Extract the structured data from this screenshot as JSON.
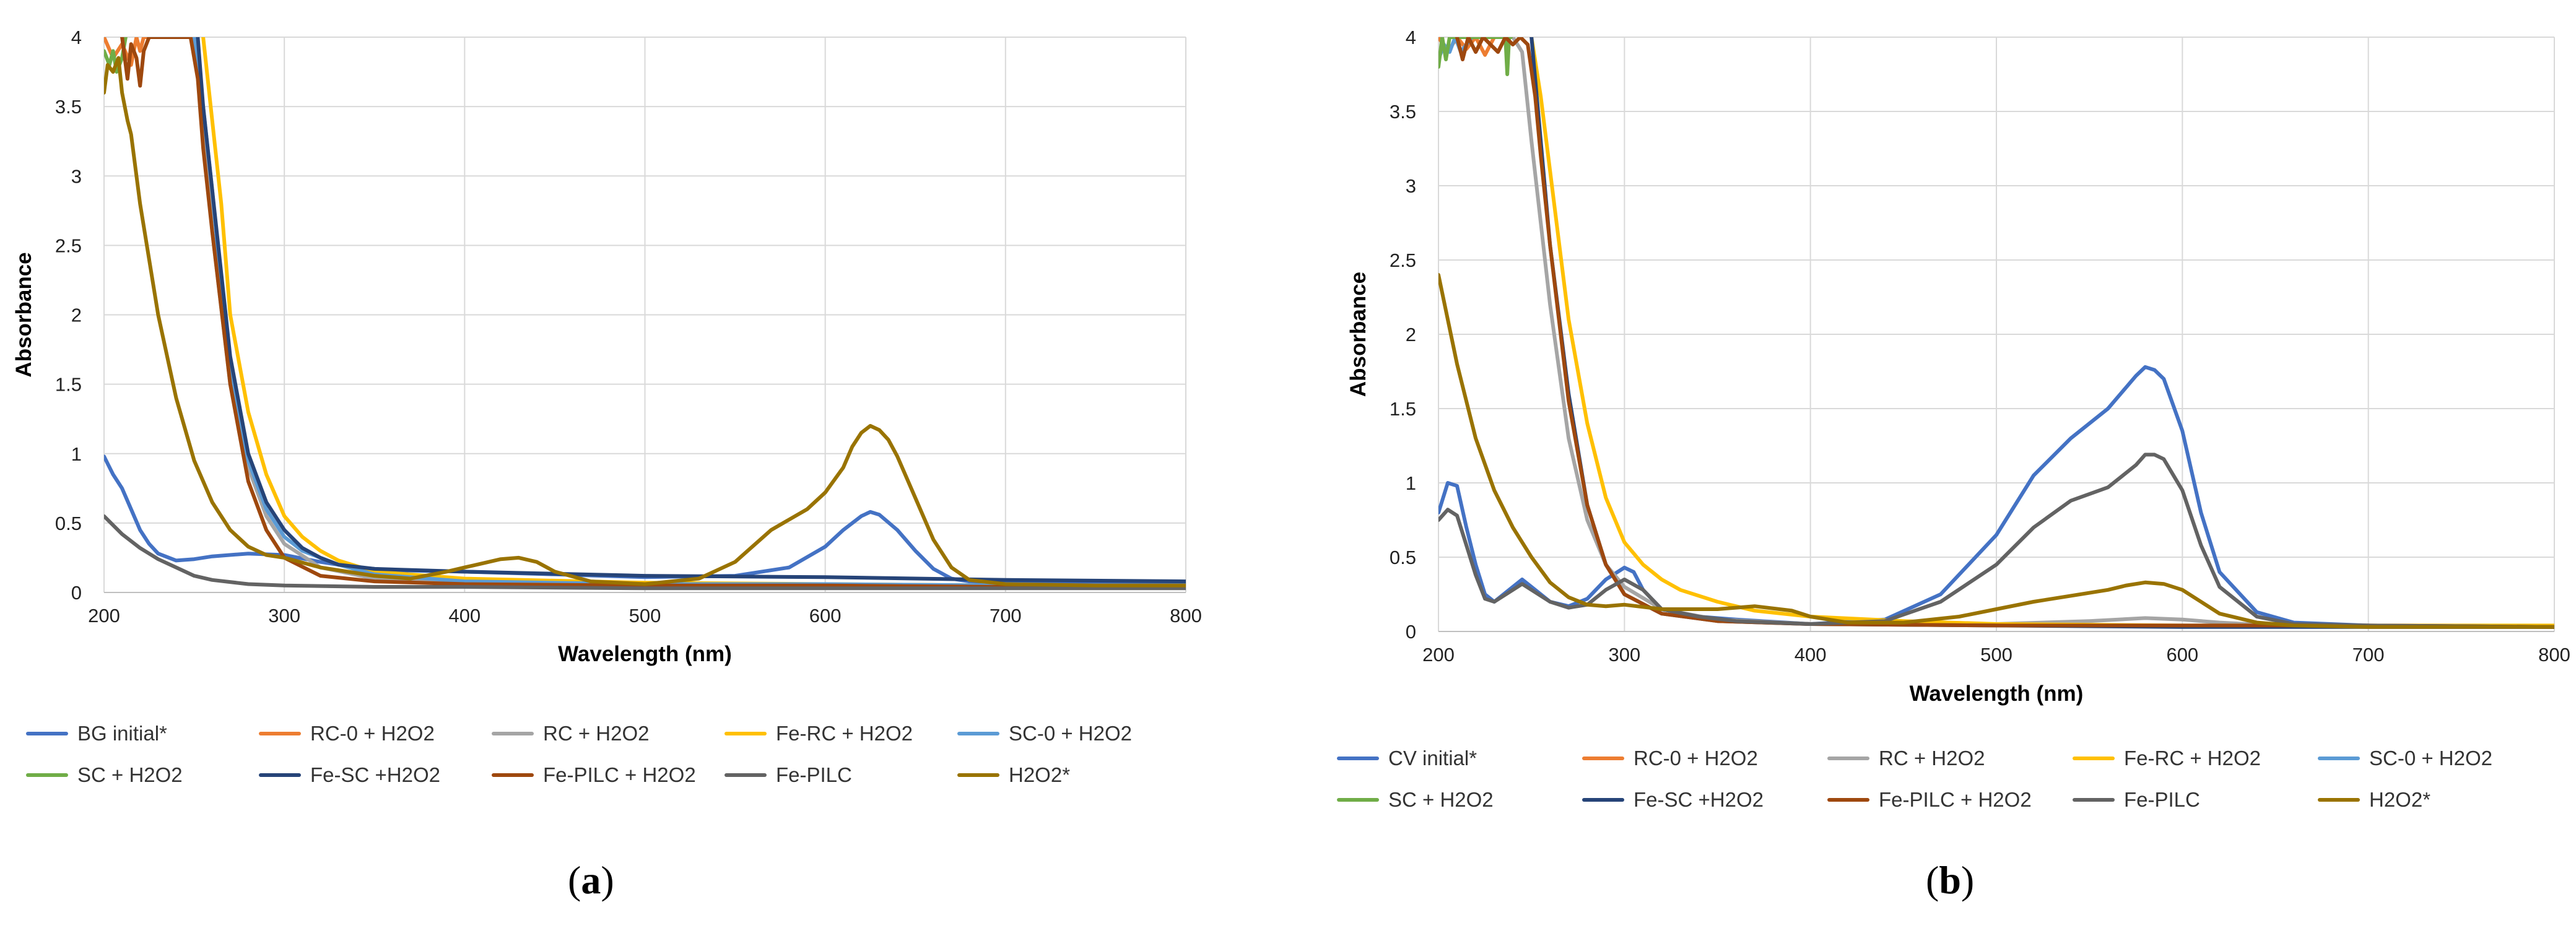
{
  "figure": {
    "caption_a": {
      "open": "(",
      "letter": "a",
      "close": ")"
    },
    "caption_b": {
      "open": "(",
      "letter": "b",
      "close": ")"
    }
  },
  "chart_data": [
    {
      "id": "a",
      "type": "line",
      "xlabel": "Wavelength (nm)",
      "ylabel": "Absorbance",
      "xlim": [
        200,
        800
      ],
      "ylim": [
        0,
        4
      ],
      "xticks": [
        200,
        300,
        400,
        500,
        600,
        700,
        800
      ],
      "yticks": [
        0,
        0.5,
        1,
        1.5,
        2,
        2.5,
        3,
        3.5,
        4
      ],
      "grid": true,
      "legend_position": "bottom",
      "legend_columns": 5,
      "series": [
        {
          "name": "BG initial*",
          "color": "#4472C4",
          "x": [
            200,
            205,
            210,
            215,
            220,
            225,
            230,
            240,
            250,
            260,
            280,
            300,
            320,
            340,
            360,
            400,
            450,
            500,
            550,
            580,
            600,
            610,
            620,
            625,
            630,
            640,
            650,
            660,
            670,
            680,
            700,
            750,
            800
          ],
          "y": [
            0.98,
            0.85,
            0.75,
            0.6,
            0.45,
            0.35,
            0.28,
            0.23,
            0.24,
            0.26,
            0.28,
            0.27,
            0.22,
            0.18,
            0.16,
            0.15,
            0.13,
            0.11,
            0.12,
            0.18,
            0.33,
            0.45,
            0.55,
            0.58,
            0.56,
            0.45,
            0.3,
            0.17,
            0.1,
            0.08,
            0.07,
            0.06,
            0.06
          ]
        },
        {
          "name": "RC-0 + H2O2",
          "color": "#ED7D31",
          "x": [
            200,
            205,
            210,
            215,
            218,
            220,
            222,
            225
          ],
          "y": [
            4.0,
            3.85,
            3.95,
            3.8,
            4.0,
            3.9,
            4.0,
            4.0
          ]
        },
        {
          "name": "RC + H2O2",
          "color": "#A5A5A5",
          "x": [
            250,
            255,
            260,
            270,
            280,
            290,
            300,
            320,
            350,
            400,
            500,
            600,
            700,
            800
          ],
          "y": [
            4.0,
            3.5,
            2.6,
            1.5,
            0.9,
            0.55,
            0.35,
            0.18,
            0.1,
            0.07,
            0.05,
            0.04,
            0.04,
            0.04
          ]
        },
        {
          "name": "Fe-RC + H2O2",
          "color": "#FFC000",
          "x": [
            255,
            260,
            265,
            270,
            280,
            290,
            300,
            310,
            320,
            330,
            350,
            400,
            500,
            600,
            700,
            800
          ],
          "y": [
            4.0,
            3.4,
            2.8,
            2.0,
            1.3,
            0.85,
            0.55,
            0.4,
            0.3,
            0.23,
            0.15,
            0.1,
            0.07,
            0.06,
            0.05,
            0.05
          ]
        },
        {
          "name": "SC-0 + H2O2",
          "color": "#5B9BD5",
          "x": [
            250,
            255,
            260,
            265,
            270,
            280,
            290,
            300,
            310,
            320,
            330,
            350,
            400,
            500,
            600,
            700,
            800
          ],
          "y": [
            4.0,
            3.5,
            2.9,
            2.2,
            1.6,
            0.95,
            0.6,
            0.4,
            0.3,
            0.25,
            0.2,
            0.13,
            0.08,
            0.06,
            0.06,
            0.05,
            0.05
          ]
        },
        {
          "name": "SC + H2O2",
          "color": "#70AD47",
          "x": [
            200,
            203,
            205,
            207,
            210,
            212
          ],
          "y": [
            3.9,
            3.8,
            3.9,
            3.75,
            3.85,
            4.0
          ]
        },
        {
          "name": "Fe-SC +H2O2",
          "color": "#264478",
          "x": [
            252,
            255,
            260,
            265,
            270,
            280,
            290,
            300,
            310,
            320,
            330,
            350,
            400,
            500,
            600,
            700,
            800
          ],
          "y": [
            4.0,
            3.5,
            2.9,
            2.3,
            1.7,
            1.0,
            0.65,
            0.45,
            0.32,
            0.25,
            0.2,
            0.17,
            0.15,
            0.12,
            0.11,
            0.09,
            0.08
          ]
        },
        {
          "name": "Fe-PILC + H2O2",
          "color": "#9E480E",
          "x": [
            210,
            213,
            215,
            218,
            220,
            222,
            225,
            230,
            240,
            248,
            252,
            255,
            260,
            270,
            280,
            290,
            300,
            320,
            350,
            400,
            500,
            600,
            700,
            800
          ],
          "y": [
            4.0,
            3.7,
            3.95,
            3.85,
            3.65,
            3.9,
            4.0,
            4.0,
            4.0,
            4.0,
            3.7,
            3.2,
            2.6,
            1.5,
            0.8,
            0.45,
            0.25,
            0.12,
            0.08,
            0.06,
            0.05,
            0.05,
            0.04,
            0.04
          ]
        },
        {
          "name": "Fe-PILC",
          "color": "#636363",
          "x": [
            200,
            210,
            220,
            230,
            240,
            250,
            260,
            280,
            300,
            350,
            400,
            500,
            600,
            700,
            800
          ],
          "y": [
            0.55,
            0.42,
            0.32,
            0.24,
            0.18,
            0.12,
            0.09,
            0.06,
            0.05,
            0.04,
            0.04,
            0.03,
            0.03,
            0.03,
            0.03
          ]
        },
        {
          "name": "H2O2*",
          "color": "#997300",
          "x": [
            200,
            202,
            205,
            208,
            210,
            213,
            215,
            220,
            230,
            240,
            250,
            260,
            270,
            280,
            290,
            300,
            320,
            350,
            370,
            390,
            400,
            410,
            420,
            430,
            440,
            450,
            470,
            500,
            530,
            550,
            570,
            590,
            600,
            610,
            615,
            620,
            625,
            630,
            635,
            640,
            650,
            660,
            670,
            680,
            700,
            750,
            800
          ],
          "y": [
            3.6,
            3.8,
            3.75,
            3.85,
            3.6,
            3.4,
            3.3,
            2.8,
            2.0,
            1.4,
            0.95,
            0.65,
            0.45,
            0.33,
            0.27,
            0.25,
            0.18,
            0.12,
            0.1,
            0.15,
            0.18,
            0.21,
            0.24,
            0.25,
            0.22,
            0.15,
            0.08,
            0.06,
            0.1,
            0.22,
            0.45,
            0.6,
            0.72,
            0.9,
            1.05,
            1.15,
            1.2,
            1.17,
            1.1,
            0.98,
            0.68,
            0.38,
            0.18,
            0.09,
            0.06,
            0.05,
            0.05
          ]
        }
      ]
    },
    {
      "id": "b",
      "type": "line",
      "xlabel": "Wavelength (nm)",
      "ylabel": "Absorbance",
      "xlim": [
        200,
        800
      ],
      "ylim": [
        0,
        4
      ],
      "xticks": [
        200,
        300,
        400,
        500,
        600,
        700,
        800
      ],
      "yticks": [
        0,
        0.5,
        1,
        1.5,
        2,
        2.5,
        3,
        3.5,
        4
      ],
      "grid": true,
      "legend_position": "bottom",
      "legend_columns": 5,
      "series": [
        {
          "name": "CV initial*",
          "color": "#4472C4",
          "x": [
            200,
            205,
            210,
            215,
            220,
            225,
            230,
            240,
            245,
            250,
            260,
            270,
            280,
            290,
            300,
            305,
            310,
            320,
            340,
            360,
            400,
            440,
            470,
            500,
            520,
            540,
            560,
            575,
            580,
            585,
            590,
            600,
            610,
            620,
            640,
            660,
            700,
            800
          ],
          "y": [
            0.8,
            1.0,
            0.98,
            0.7,
            0.45,
            0.25,
            0.2,
            0.3,
            0.35,
            0.3,
            0.2,
            0.17,
            0.22,
            0.35,
            0.43,
            0.4,
            0.28,
            0.15,
            0.1,
            0.08,
            0.05,
            0.08,
            0.25,
            0.65,
            1.05,
            1.3,
            1.5,
            1.72,
            1.78,
            1.76,
            1.7,
            1.35,
            0.8,
            0.4,
            0.13,
            0.06,
            0.04,
            0.03
          ]
        },
        {
          "name": "RC-0 + H2O2",
          "color": "#ED7D31",
          "x": [
            200,
            205,
            210,
            215,
            220,
            225,
            230
          ],
          "y": [
            4.0,
            3.9,
            4.0,
            3.92,
            4.0,
            3.88,
            4.0
          ]
        },
        {
          "name": "RC + H2O2",
          "color": "#A5A5A5",
          "x": [
            240,
            245,
            250,
            260,
            270,
            280,
            290,
            300,
            320,
            350,
            400,
            500,
            550,
            580,
            600,
            620,
            650,
            700,
            800
          ],
          "y": [
            4.0,
            3.9,
            3.3,
            2.2,
            1.3,
            0.75,
            0.45,
            0.3,
            0.15,
            0.08,
            0.05,
            0.05,
            0.07,
            0.09,
            0.08,
            0.06,
            0.04,
            0.03,
            0.03
          ]
        },
        {
          "name": "Fe-RC + H2O2",
          "color": "#FFC000",
          "x": [
            250,
            255,
            260,
            270,
            280,
            290,
            300,
            310,
            320,
            330,
            350,
            370,
            400,
            450,
            500,
            600,
            700,
            800
          ],
          "y": [
            4.0,
            3.6,
            3.1,
            2.1,
            1.4,
            0.9,
            0.6,
            0.45,
            0.35,
            0.28,
            0.2,
            0.14,
            0.1,
            0.07,
            0.05,
            0.04,
            0.04,
            0.04
          ]
        },
        {
          "name": "SC-0 + H2O2",
          "color": "#5B9BD5",
          "x": [
            200,
            203,
            206,
            209,
            212,
            215,
            218
          ],
          "y": [
            3.85,
            3.95,
            3.9,
            4.0,
            3.9,
            3.95,
            4.0
          ]
        },
        {
          "name": "SC + H2O2",
          "color": "#70AD47",
          "x": [
            200,
            202,
            204,
            206,
            236,
            237,
            238,
            239
          ],
          "y": [
            3.8,
            4.0,
            3.85,
            4.0,
            4.0,
            3.75,
            4.0,
            4.0
          ]
        },
        {
          "name": "Fe-SC +H2O2",
          "color": "#264478",
          "x": [
            250,
            255,
            260,
            270,
            280,
            290,
            300,
            320,
            350,
            400,
            500,
            600,
            700,
            800
          ],
          "y": [
            4.0,
            3.3,
            2.6,
            1.6,
            0.85,
            0.45,
            0.25,
            0.12,
            0.07,
            0.05,
            0.04,
            0.03,
            0.03,
            0.03
          ]
        },
        {
          "name": "Fe-PILC + H2O2",
          "color": "#9E480E",
          "x": [
            210,
            213,
            216,
            220,
            224,
            228,
            232,
            236,
            240,
            244,
            248,
            252,
            255,
            260,
            270,
            280,
            290,
            300,
            320,
            350,
            400,
            500,
            600,
            700,
            800
          ],
          "y": [
            4.0,
            3.85,
            4.0,
            3.9,
            4.0,
            3.95,
            3.9,
            4.0,
            3.95,
            4.0,
            3.95,
            3.6,
            3.2,
            2.6,
            1.55,
            0.85,
            0.45,
            0.25,
            0.12,
            0.07,
            0.05,
            0.04,
            0.04,
            0.04,
            0.03
          ]
        },
        {
          "name": "Fe-PILC",
          "color": "#636363",
          "x": [
            200,
            205,
            210,
            215,
            220,
            225,
            230,
            240,
            245,
            250,
            260,
            270,
            280,
            290,
            300,
            310,
            320,
            340,
            360,
            400,
            440,
            470,
            500,
            520,
            540,
            560,
            575,
            580,
            585,
            590,
            600,
            610,
            620,
            640,
            660,
            700,
            800
          ],
          "y": [
            0.75,
            0.82,
            0.78,
            0.58,
            0.38,
            0.22,
            0.2,
            0.28,
            0.32,
            0.28,
            0.2,
            0.16,
            0.18,
            0.28,
            0.35,
            0.28,
            0.15,
            0.1,
            0.07,
            0.05,
            0.07,
            0.2,
            0.45,
            0.7,
            0.88,
            0.97,
            1.12,
            1.19,
            1.19,
            1.16,
            0.95,
            0.58,
            0.3,
            0.1,
            0.05,
            0.04,
            0.03
          ]
        },
        {
          "name": "H2O2*",
          "color": "#997300",
          "x": [
            200,
            205,
            210,
            220,
            230,
            240,
            250,
            260,
            270,
            280,
            290,
            300,
            320,
            350,
            370,
            390,
            400,
            420,
            450,
            480,
            500,
            520,
            540,
            560,
            570,
            580,
            590,
            600,
            610,
            620,
            640,
            660,
            700,
            800
          ],
          "y": [
            2.4,
            2.1,
            1.8,
            1.3,
            0.95,
            0.7,
            0.5,
            0.33,
            0.23,
            0.18,
            0.17,
            0.18,
            0.15,
            0.15,
            0.17,
            0.14,
            0.1,
            0.06,
            0.06,
            0.1,
            0.15,
            0.2,
            0.24,
            0.28,
            0.31,
            0.33,
            0.32,
            0.28,
            0.2,
            0.12,
            0.06,
            0.04,
            0.03,
            0.03
          ]
        }
      ]
    }
  ]
}
